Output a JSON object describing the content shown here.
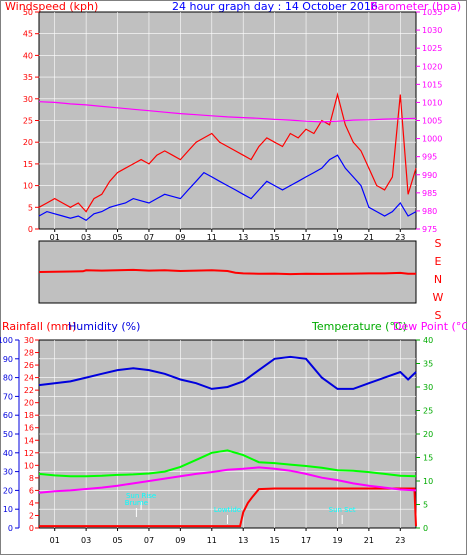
{
  "header": {
    "left_label": "Windspeed (kph)",
    "title": "24 hour graph day : 14 October 2016",
    "right_label": "Barometer (hpa)"
  },
  "bottom_header": {
    "rain_label": "Rainfall (mm)",
    "humidity_label": "Humidity (%)",
    "temp_label": "Temperature (°C)",
    "dew_label": "Dew Point (°C)"
  },
  "colors": {
    "plot_bg": "#c0c0c0",
    "wind": "#ff0000",
    "gust": "#0000ff",
    "baro": "#ff00ff",
    "rain": "#ff0000",
    "humidity": "#0000dd",
    "temperature": "#00ff00",
    "dewpoint": "#ff00ff",
    "annotation": "#00ffff"
  },
  "chart_data": [
    {
      "type": "line",
      "name": "wind-barometer",
      "xlabels": [
        "01",
        "03",
        "05",
        "07",
        "09",
        "11",
        "13",
        "15",
        "17",
        "19",
        "21",
        "23"
      ],
      "xlim": [
        0,
        24
      ],
      "y_left": {
        "label": "Windspeed (kph)",
        "ylim": [
          0,
          50
        ],
        "ticks": [
          0,
          5,
          10,
          15,
          20,
          25,
          30,
          35,
          40,
          45,
          50
        ]
      },
      "y_right": {
        "label": "Barometer (hpa)",
        "ylim": [
          975,
          1035
        ],
        "ticks": [
          975,
          980,
          985,
          990,
          995,
          1000,
          1005,
          1010,
          1015,
          1020,
          1025,
          1030,
          1035
        ]
      },
      "series": [
        {
          "key": "wind_gust",
          "color": "#ff0000",
          "axis": "left",
          "x": [
            0,
            0.5,
            1,
            1.5,
            2,
            2.5,
            3,
            3.5,
            4,
            4.5,
            5,
            5.5,
            6,
            6.5,
            7,
            7.5,
            8,
            8.5,
            9,
            9.5,
            10,
            10.5,
            11,
            11.5,
            12,
            12.5,
            13,
            13.5,
            14,
            14.5,
            15,
            15.5,
            16,
            16.5,
            17,
            17.5,
            18,
            18.5,
            19,
            19.5,
            20,
            20.5,
            21,
            21.5,
            22,
            22.5,
            23,
            23.5,
            24
          ],
          "y": [
            5,
            6,
            7,
            6,
            5,
            6,
            4,
            7,
            8,
            11,
            13,
            14,
            15,
            16,
            15,
            17,
            18,
            17,
            16,
            18,
            20,
            21,
            22,
            20,
            19,
            18,
            17,
            16,
            19,
            21,
            20,
            19,
            22,
            21,
            23,
            22,
            25,
            24,
            31,
            24,
            20,
            18,
            14,
            10,
            9,
            12,
            31,
            8,
            14
          ]
        },
        {
          "key": "wind_avg",
          "color": "#0000ff",
          "axis": "left",
          "x": [
            0,
            0.5,
            1,
            1.5,
            2,
            2.5,
            3,
            3.5,
            4,
            4.5,
            5,
            5.5,
            6,
            6.5,
            7,
            7.5,
            8,
            8.5,
            9,
            9.5,
            10,
            10.5,
            11,
            11.5,
            12,
            12.5,
            13,
            13.5,
            14,
            14.5,
            15,
            15.5,
            16,
            16.5,
            17,
            17.5,
            18,
            18.5,
            19,
            19.5,
            20,
            20.5,
            21,
            21.5,
            22,
            22.5,
            23,
            23.5,
            24
          ],
          "y": [
            3,
            4,
            3.5,
            3,
            2.5,
            3,
            2,
            3.5,
            4,
            5,
            5.5,
            6,
            7,
            6.5,
            6,
            7,
            8,
            7.5,
            7,
            9,
            11,
            13,
            12,
            11,
            10,
            9,
            8,
            7,
            9,
            11,
            10,
            9,
            10,
            11,
            12,
            13,
            14,
            16,
            17,
            14,
            12,
            10,
            5,
            4,
            3,
            4,
            6,
            3,
            4
          ]
        },
        {
          "key": "barometer",
          "color": "#ff00ff",
          "axis": "right",
          "x": [
            0,
            1,
            2,
            3,
            4,
            5,
            6,
            7,
            8,
            9,
            10,
            11,
            12,
            13,
            14,
            15,
            16,
            17,
            18,
            19,
            20,
            21,
            22,
            23,
            24
          ],
          "y": [
            1010.2,
            1010.0,
            1009.6,
            1009.3,
            1008.9,
            1008.5,
            1008.1,
            1007.7,
            1007.3,
            1006.9,
            1006.6,
            1006.3,
            1006.0,
            1005.8,
            1005.6,
            1005.3,
            1005.1,
            1004.8,
            1004.6,
            1004.8,
            1005.1,
            1005.2,
            1005.4,
            1005.5,
            1005.6
          ]
        }
      ]
    },
    {
      "type": "line",
      "name": "wind-direction",
      "xlim": [
        0,
        24
      ],
      "y_axis_labels": [
        "S",
        "E",
        "N",
        "W",
        "S"
      ],
      "ylim": [
        0,
        360
      ],
      "series": [
        {
          "key": "direction",
          "color": "#ff0000",
          "x": [
            0,
            1,
            2,
            2.8,
            3,
            4,
            5,
            6,
            7,
            8,
            9,
            10,
            11,
            12,
            12.5,
            13,
            14,
            15,
            16,
            17,
            18,
            19,
            20,
            21,
            22,
            23,
            23.5,
            24
          ],
          "y": [
            180,
            182,
            183,
            184,
            190,
            188,
            190,
            192,
            188,
            190,
            186,
            188,
            190,
            186,
            176,
            172,
            170,
            171,
            168,
            170,
            169,
            170,
            171,
            172,
            172,
            175,
            170,
            170
          ]
        }
      ]
    },
    {
      "type": "line",
      "name": "rain-humidity-temp",
      "xlabels": [
        "01",
        "03",
        "05",
        "07",
        "09",
        "11",
        "13",
        "15",
        "17",
        "19",
        "21",
        "23"
      ],
      "xlim": [
        0,
        24
      ],
      "y_humidity": {
        "label": "Humidity (%)",
        "ylim": [
          0,
          100
        ],
        "ticks": [
          0,
          10,
          20,
          30,
          40,
          50,
          60,
          70,
          80,
          90,
          100
        ]
      },
      "y_rain": {
        "label": "Rainfall (mm)",
        "ylim": [
          0,
          30
        ],
        "ticks": [
          0,
          2,
          4,
          6,
          8,
          10,
          12,
          14,
          16,
          18,
          20,
          22,
          24,
          26,
          28,
          30
        ]
      },
      "y_temp": {
        "label": "Temperature (°C)",
        "ylim": [
          0,
          40
        ],
        "ticks": [
          0,
          5,
          10,
          15,
          20,
          25,
          30,
          35,
          40
        ]
      },
      "annotations": [
        {
          "text": "Sun Rise",
          "x": 6.5
        },
        {
          "text": "Sun Set",
          "x": 19.3
        },
        {
          "text": "Brume",
          "x": 6.2
        },
        {
          "text": "Lowtide",
          "x": 12.0
        }
      ],
      "series": [
        {
          "key": "humidity",
          "color": "#0000dd",
          "axis": "humidity",
          "x": [
            0,
            1,
            2,
            3,
            4,
            5,
            6,
            7,
            8,
            9,
            10,
            11,
            12,
            13,
            14,
            15,
            16,
            17,
            18,
            19,
            20,
            21,
            22,
            23,
            23.5,
            24
          ],
          "y": [
            76,
            77,
            78,
            80,
            82,
            84,
            85,
            84,
            82,
            79,
            77,
            74,
            75,
            78,
            84,
            90,
            91,
            90,
            80,
            74,
            74,
            77,
            80,
            83,
            79,
            83
          ]
        },
        {
          "key": "rainfall",
          "color": "#ff0000",
          "axis": "rain",
          "x": [
            0,
            1,
            2,
            3,
            4,
            5,
            6,
            7,
            8,
            9,
            10,
            11,
            12,
            12.8,
            13,
            13.3,
            13.6,
            14,
            15,
            16,
            17,
            18,
            19,
            20,
            21,
            22,
            23,
            23.5,
            23.9,
            24
          ],
          "y": [
            0.3,
            0.3,
            0.3,
            0.3,
            0.3,
            0.3,
            0.3,
            0.3,
            0.3,
            0.3,
            0.3,
            0.3,
            0.3,
            0.3,
            2.5,
            4.0,
            5.0,
            6.2,
            6.3,
            6.3,
            6.3,
            6.3,
            6.3,
            6.3,
            6.3,
            6.3,
            6.3,
            6.3,
            6.3,
            0.3
          ]
        },
        {
          "key": "temperature",
          "color": "#00ff00",
          "axis": "temp",
          "x": [
            0,
            1,
            2,
            3,
            4,
            5,
            6,
            7,
            8,
            9,
            10,
            11,
            12,
            13,
            14,
            15,
            16,
            17,
            18,
            19,
            20,
            21,
            22,
            23,
            24
          ],
          "y": [
            11.5,
            11.2,
            11.0,
            11.0,
            11.1,
            11.3,
            11.4,
            11.6,
            12.0,
            13.0,
            14.5,
            16.0,
            16.5,
            15.5,
            14.0,
            13.8,
            13.5,
            13.2,
            12.8,
            12.3,
            12.2,
            11.9,
            11.5,
            11.1,
            11.0
          ]
        },
        {
          "key": "dewpoint",
          "color": "#ff00ff",
          "axis": "temp",
          "x": [
            0,
            1,
            2,
            3,
            4,
            5,
            6,
            7,
            8,
            9,
            10,
            11,
            12,
            13,
            14,
            15,
            16,
            17,
            18,
            19,
            20,
            21,
            22,
            23,
            24
          ],
          "y": [
            7.5,
            7.8,
            8.0,
            8.3,
            8.6,
            9.0,
            9.5,
            10.0,
            10.5,
            11.0,
            11.5,
            11.9,
            12.4,
            12.6,
            12.9,
            12.6,
            12.2,
            11.5,
            10.7,
            10.2,
            9.5,
            9.0,
            8.6,
            8.2,
            8.0
          ]
        }
      ]
    }
  ]
}
